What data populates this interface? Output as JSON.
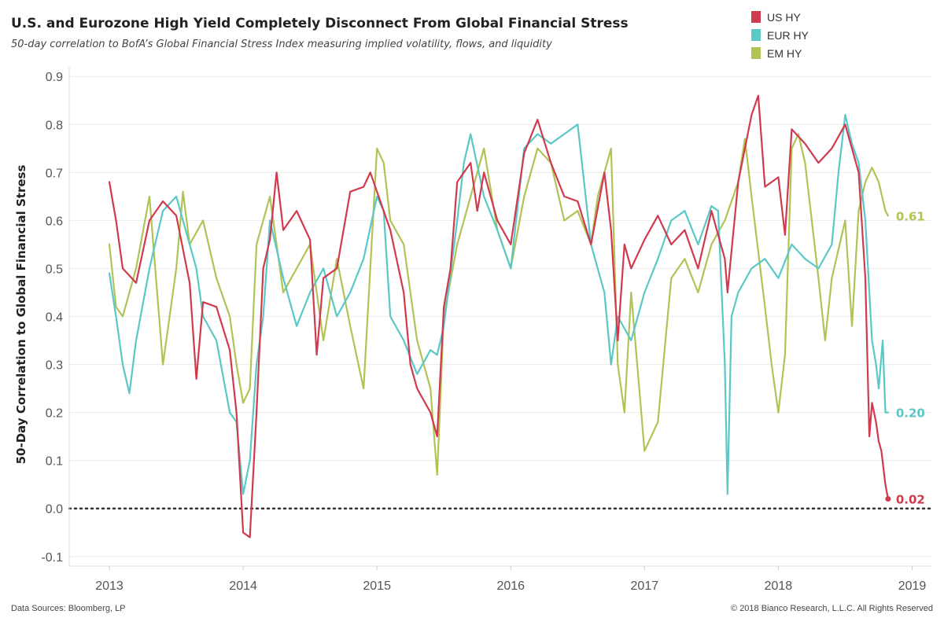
{
  "header": {
    "title": "U.S. and Eurozone High Yield Completely Disconnect From Global Financial Stress",
    "subtitle": "50-day correlation to BofA’s Global Financial Stress Index measuring implied volatility, flows, and liquidity"
  },
  "footer": {
    "source": "Data Sources: Bloomberg, LP",
    "copyright": "© 2018 Bianco Research, L.L.C. All Rights Reserved"
  },
  "colors": {
    "us_hy": "#d03a4f",
    "eur_hy": "#5bc8c8",
    "em_hy": "#b1c354",
    "zero_line": "#333333",
    "grid": "#ececec"
  },
  "chart_data": {
    "type": "line",
    "title": "U.S. and Eurozone High Yield Completely Disconnect From Global Financial Stress",
    "subtitle": "50-day correlation to BofA’s Global Financial Stress Index measuring implied volatility, flows, and liquidity",
    "xlabel": "",
    "ylabel": "50-Day Correlation to Global Financial Stress",
    "xlim": [
      2012.7,
      2019.15
    ],
    "ylim": [
      -0.12,
      0.92
    ],
    "x_ticks": [
      2013,
      2014,
      2015,
      2016,
      2017,
      2018,
      2019
    ],
    "x_tick_labels": [
      "2013",
      "2014",
      "2015",
      "2016",
      "2017",
      "2018",
      "2019"
    ],
    "y_ticks": [
      -0.1,
      0.0,
      0.1,
      0.2,
      0.3,
      0.4,
      0.5,
      0.6,
      0.7,
      0.8,
      0.9
    ],
    "y_tick_labels": [
      "-0.1",
      "0.0",
      "0.1",
      "0.2",
      "0.3",
      "0.4",
      "0.5",
      "0.6",
      "0.7",
      "0.8",
      "0.9"
    ],
    "grid": true,
    "zero_line": "dotted",
    "legend_position": "top-right",
    "legend": [
      "US HY",
      "EUR HY",
      "EM HY"
    ],
    "series": [
      {
        "name": "US HY",
        "color": "#d03a4f",
        "end_label": "0.02",
        "x": [
          2013.0,
          2013.05,
          2013.1,
          2013.2,
          2013.3,
          2013.4,
          2013.5,
          2013.6,
          2013.65,
          2013.7,
          2013.8,
          2013.9,
          2013.95,
          2014.0,
          2014.05,
          2014.1,
          2014.15,
          2014.2,
          2014.25,
          2014.3,
          2014.4,
          2014.5,
          2014.55,
          2014.6,
          2014.7,
          2014.8,
          2014.9,
          2014.95,
          2015.0,
          2015.1,
          2015.2,
          2015.25,
          2015.3,
          2015.4,
          2015.45,
          2015.5,
          2015.55,
          2015.6,
          2015.7,
          2015.75,
          2015.8,
          2015.9,
          2016.0,
          2016.1,
          2016.2,
          2016.3,
          2016.4,
          2016.5,
          2016.6,
          2016.7,
          2016.75,
          2016.8,
          2016.85,
          2016.9,
          2017.0,
          2017.1,
          2017.2,
          2017.3,
          2017.4,
          2017.5,
          2017.6,
          2017.62,
          2017.7,
          2017.8,
          2017.85,
          2017.9,
          2018.0,
          2018.05,
          2018.1,
          2018.2,
          2018.3,
          2018.4,
          2018.5,
          2018.55,
          2018.6,
          2018.65,
          2018.68,
          2018.7,
          2018.73,
          2018.75,
          2018.77,
          2018.8,
          2018.82
        ],
        "values": [
          0.68,
          0.6,
          0.5,
          0.47,
          0.6,
          0.64,
          0.61,
          0.47,
          0.27,
          0.43,
          0.42,
          0.33,
          0.2,
          -0.05,
          -0.06,
          0.2,
          0.5,
          0.56,
          0.7,
          0.58,
          0.62,
          0.56,
          0.32,
          0.48,
          0.5,
          0.66,
          0.67,
          0.7,
          0.66,
          0.58,
          0.45,
          0.3,
          0.25,
          0.2,
          0.15,
          0.42,
          0.5,
          0.68,
          0.72,
          0.62,
          0.7,
          0.6,
          0.55,
          0.74,
          0.81,
          0.72,
          0.65,
          0.64,
          0.55,
          0.7,
          0.58,
          0.35,
          0.55,
          0.5,
          0.56,
          0.61,
          0.55,
          0.58,
          0.5,
          0.62,
          0.52,
          0.45,
          0.68,
          0.82,
          0.86,
          0.67,
          0.69,
          0.57,
          0.79,
          0.76,
          0.72,
          0.75,
          0.8,
          0.75,
          0.7,
          0.48,
          0.15,
          0.22,
          0.18,
          0.14,
          0.12,
          0.05,
          0.02
        ]
      },
      {
        "name": "EUR HY",
        "color": "#5bc8c8",
        "end_label": "0.20",
        "x": [
          2013.0,
          2013.05,
          2013.1,
          2013.15,
          2013.2,
          2013.3,
          2013.4,
          2013.5,
          2013.6,
          2013.65,
          2013.7,
          2013.8,
          2013.9,
          2013.95,
          2014.0,
          2014.05,
          2014.1,
          2014.15,
          2014.2,
          2014.3,
          2014.4,
          2014.5,
          2014.6,
          2014.7,
          2014.8,
          2014.9,
          2015.0,
          2015.05,
          2015.1,
          2015.2,
          2015.3,
          2015.4,
          2015.45,
          2015.5,
          2015.6,
          2015.65,
          2015.7,
          2015.8,
          2015.9,
          2016.0,
          2016.1,
          2016.2,
          2016.3,
          2016.4,
          2016.5,
          2016.6,
          2016.7,
          2016.75,
          2016.8,
          2016.9,
          2017.0,
          2017.1,
          2017.2,
          2017.3,
          2017.4,
          2017.5,
          2017.55,
          2017.6,
          2017.62,
          2017.65,
          2017.7,
          2017.8,
          2017.9,
          2018.0,
          2018.1,
          2018.2,
          2018.3,
          2018.4,
          2018.45,
          2018.5,
          2018.55,
          2018.6,
          2018.65,
          2018.7,
          2018.73,
          2018.75,
          2018.78,
          2018.8,
          2018.82
        ],
        "values": [
          0.49,
          0.4,
          0.3,
          0.24,
          0.35,
          0.5,
          0.62,
          0.65,
          0.55,
          0.5,
          0.4,
          0.35,
          0.2,
          0.18,
          0.03,
          0.1,
          0.3,
          0.4,
          0.6,
          0.48,
          0.38,
          0.45,
          0.5,
          0.4,
          0.45,
          0.52,
          0.65,
          0.62,
          0.4,
          0.35,
          0.28,
          0.33,
          0.32,
          0.38,
          0.6,
          0.72,
          0.78,
          0.65,
          0.58,
          0.5,
          0.75,
          0.78,
          0.76,
          0.78,
          0.8,
          0.55,
          0.45,
          0.3,
          0.4,
          0.35,
          0.45,
          0.52,
          0.6,
          0.62,
          0.55,
          0.63,
          0.62,
          0.3,
          0.03,
          0.4,
          0.45,
          0.5,
          0.52,
          0.48,
          0.55,
          0.52,
          0.5,
          0.55,
          0.7,
          0.82,
          0.76,
          0.72,
          0.6,
          0.35,
          0.3,
          0.25,
          0.35,
          0.2,
          0.2
        ]
      },
      {
        "name": "EM HY",
        "color": "#b1c354",
        "end_label": "0.61",
        "x": [
          2013.0,
          2013.05,
          2013.1,
          2013.2,
          2013.3,
          2013.4,
          2013.5,
          2013.55,
          2013.6,
          2013.7,
          2013.8,
          2013.9,
          2013.95,
          2014.0,
          2014.05,
          2014.1,
          2014.2,
          2014.3,
          2014.4,
          2014.5,
          2014.6,
          2014.7,
          2014.8,
          2014.9,
          2015.0,
          2015.05,
          2015.1,
          2015.2,
          2015.3,
          2015.35,
          2015.4,
          2015.45,
          2015.5,
          2015.6,
          2015.7,
          2015.8,
          2015.9,
          2016.0,
          2016.1,
          2016.2,
          2016.3,
          2016.4,
          2016.5,
          2016.6,
          2016.65,
          2016.7,
          2016.75,
          2016.8,
          2016.85,
          2016.9,
          2017.0,
          2017.1,
          2017.2,
          2017.3,
          2017.4,
          2017.5,
          2017.6,
          2017.7,
          2017.75,
          2017.8,
          2017.9,
          2017.95,
          2018.0,
          2018.05,
          2018.1,
          2018.15,
          2018.2,
          2018.3,
          2018.35,
          2018.4,
          2018.5,
          2018.55,
          2018.6,
          2018.65,
          2018.7,
          2018.75,
          2018.8,
          2018.82
        ],
        "values": [
          0.55,
          0.42,
          0.4,
          0.5,
          0.65,
          0.3,
          0.5,
          0.66,
          0.55,
          0.6,
          0.48,
          0.4,
          0.3,
          0.22,
          0.25,
          0.55,
          0.65,
          0.45,
          0.5,
          0.55,
          0.35,
          0.52,
          0.38,
          0.25,
          0.75,
          0.72,
          0.6,
          0.55,
          0.35,
          0.3,
          0.25,
          0.07,
          0.4,
          0.55,
          0.65,
          0.75,
          0.58,
          0.5,
          0.65,
          0.75,
          0.72,
          0.6,
          0.62,
          0.55,
          0.65,
          0.7,
          0.75,
          0.3,
          0.2,
          0.45,
          0.12,
          0.18,
          0.48,
          0.52,
          0.45,
          0.55,
          0.6,
          0.68,
          0.77,
          0.65,
          0.42,
          0.3,
          0.2,
          0.32,
          0.75,
          0.78,
          0.72,
          0.48,
          0.35,
          0.48,
          0.6,
          0.38,
          0.62,
          0.68,
          0.71,
          0.68,
          0.62,
          0.61
        ]
      }
    ]
  }
}
